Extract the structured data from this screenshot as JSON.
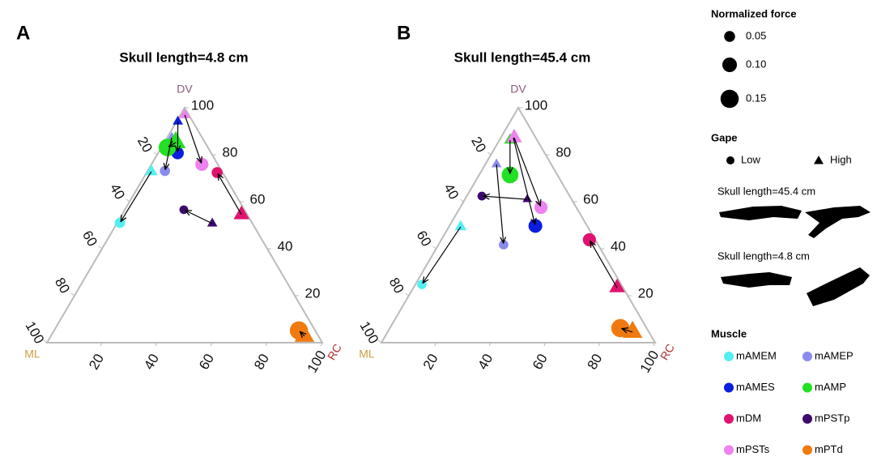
{
  "chart_data": [
    {
      "type": "ternary",
      "label": "A",
      "title": "Skull length=4.8 cm",
      "top_label": "DV",
      "left_label": "ML",
      "right_label": "RC",
      "dv_ticks": [
        20,
        40,
        60,
        80,
        100
      ],
      "ml_ticks": [
        20,
        40,
        60,
        80,
        100
      ],
      "rc_ticks": [
        20,
        40,
        60,
        80,
        100
      ],
      "series": [
        {
          "name": "mAMEM",
          "color": "#55eef0",
          "dv": [
            51,
            72.8
          ],
          "ml": [
            48,
            25.7
          ],
          "rc": [
            1,
            1.5
          ],
          "size": [
            0.04,
            0.06
          ]
        },
        {
          "name": "mAMEP",
          "color": "#8a8cec",
          "dv": [
            73.1,
            87.2
          ],
          "ml": [
            20.6,
            11.1
          ],
          "rc": [
            6.3,
            1.7
          ],
          "size": [
            0.04,
            0.03
          ]
        },
        {
          "name": "mAMES",
          "color": "#0b1ee0",
          "dv": [
            80.7,
            94.1
          ],
          "ml": [
            12.2,
            5.4
          ],
          "rc": [
            7.1,
            0.5
          ],
          "size": [
            0.07,
            0.03
          ]
        },
        {
          "name": "mAMP",
          "color": "#22e022",
          "dv": [
            83.1,
            85.2
          ],
          "ml": [
            14.7,
            10.6
          ],
          "rc": [
            2.2,
            4.2
          ],
          "size": [
            0.14,
            0.15
          ]
        },
        {
          "name": "mDM",
          "color": "#e0136e",
          "dv": [
            72.4,
            54.5
          ],
          "ml": [
            2,
            2.1
          ],
          "rc": [
            25.6,
            43.4
          ],
          "size": [
            0.05,
            0.1
          ]
        },
        {
          "name": "mPSTp",
          "color": "#3d0a6e",
          "dv": [
            56.6,
            50.7
          ],
          "ml": [
            22,
            14.6
          ],
          "rc": [
            21.4,
            34.7
          ],
          "size": [
            0.02,
            0.03
          ]
        },
        {
          "name": "mPSTs",
          "color": "#ee82ee",
          "dv": [
            75.9,
            96.9
          ],
          "ml": [
            5.8,
            1.5
          ],
          "rc": [
            18.3,
            1.6
          ],
          "size": [
            0.08,
            0.04
          ]
        },
        {
          "name": "mPTd",
          "color": "#f07a10",
          "dv": [
            5.2,
            2.8
          ],
          "ml": [
            5.9,
            5.1
          ],
          "rc": [
            88.9,
            92.1
          ],
          "size": [
            0.15,
            0.15
          ]
        }
      ]
    },
    {
      "type": "ternary",
      "label": "B",
      "title": "Skull length=45.4 cm",
      "top_label": "DV",
      "left_label": "ML",
      "right_label": "RC",
      "dv_ticks": [
        20,
        40,
        60,
        80,
        100
      ],
      "ml_ticks": [
        20,
        40,
        60,
        80,
        100
      ],
      "rc_ticks": [
        20,
        40,
        60,
        80,
        100
      ],
      "series": [
        {
          "name": "mAMEM",
          "color": "#55eef0",
          "dv": [
            24.8,
            49.3
          ],
          "ml": [
            72.8,
            46.4
          ],
          "rc": [
            2.4,
            4.3
          ],
          "size": [
            0.03,
            0.05
          ]
        },
        {
          "name": "mAMEP",
          "color": "#8a8cec",
          "dv": [
            41.7,
            75.9
          ],
          "ml": [
            34.5,
            20
          ],
          "rc": [
            23.8,
            4.1
          ],
          "size": [
            0.03,
            0.03
          ]
        },
        {
          "name": "mAMES",
          "color": "#0b1ee0",
          "dv": [
            49.7,
            87.2
          ],
          "ml": [
            18.9,
            8.2
          ],
          "rc": [
            31.4,
            4.6
          ],
          "size": [
            0.09,
            0.03
          ]
        },
        {
          "name": "mAMP",
          "color": "#22e022",
          "dv": [
            71.4,
            86.2
          ],
          "ml": [
            17.3,
            9.9
          ],
          "rc": [
            11.3,
            3.9
          ],
          "size": [
            0.13,
            0.05
          ]
        },
        {
          "name": "mDM",
          "color": "#e0136e",
          "dv": [
            43.8,
            23.4
          ],
          "ml": [
            2.1,
            2.2
          ],
          "rc": [
            54.1,
            74.4
          ],
          "size": [
            0.08,
            0.1
          ]
        },
        {
          "name": "mPSTp",
          "color": "#3d0a6e",
          "dv": [
            62.4,
            61
          ],
          "ml": [
            32.1,
            16.2
          ],
          "rc": [
            5.5,
            22.8
          ],
          "size": [
            0.02,
            0.02
          ]
        },
        {
          "name": "mPSTs",
          "color": "#ee82ee",
          "dv": [
            57.6,
            87.2
          ],
          "ml": [
            12.9,
            7.9
          ],
          "rc": [
            29.5,
            4.9
          ],
          "size": [
            0.08,
            0.1
          ]
        },
        {
          "name": "mPTd",
          "color": "#f07a10",
          "dv": [
            6.2,
            4.5
          ],
          "ml": [
            9.6,
            6
          ],
          "rc": [
            84.2,
            89.5
          ],
          "size": [
            0.15,
            0.15
          ]
        }
      ]
    }
  ],
  "legend": {
    "size_title": "Normalized force",
    "sizes": [
      0.05,
      {
        "value": 0.1,
        "label": "0.10"
      },
      0.15
    ],
    "gape_title": "Gape",
    "gape": [
      "Low",
      "High"
    ],
    "skull_labels": [
      "Skull length=45.4 cm",
      "Skull length=4.8 cm"
    ],
    "muscle_title": "Muscle"
  }
}
